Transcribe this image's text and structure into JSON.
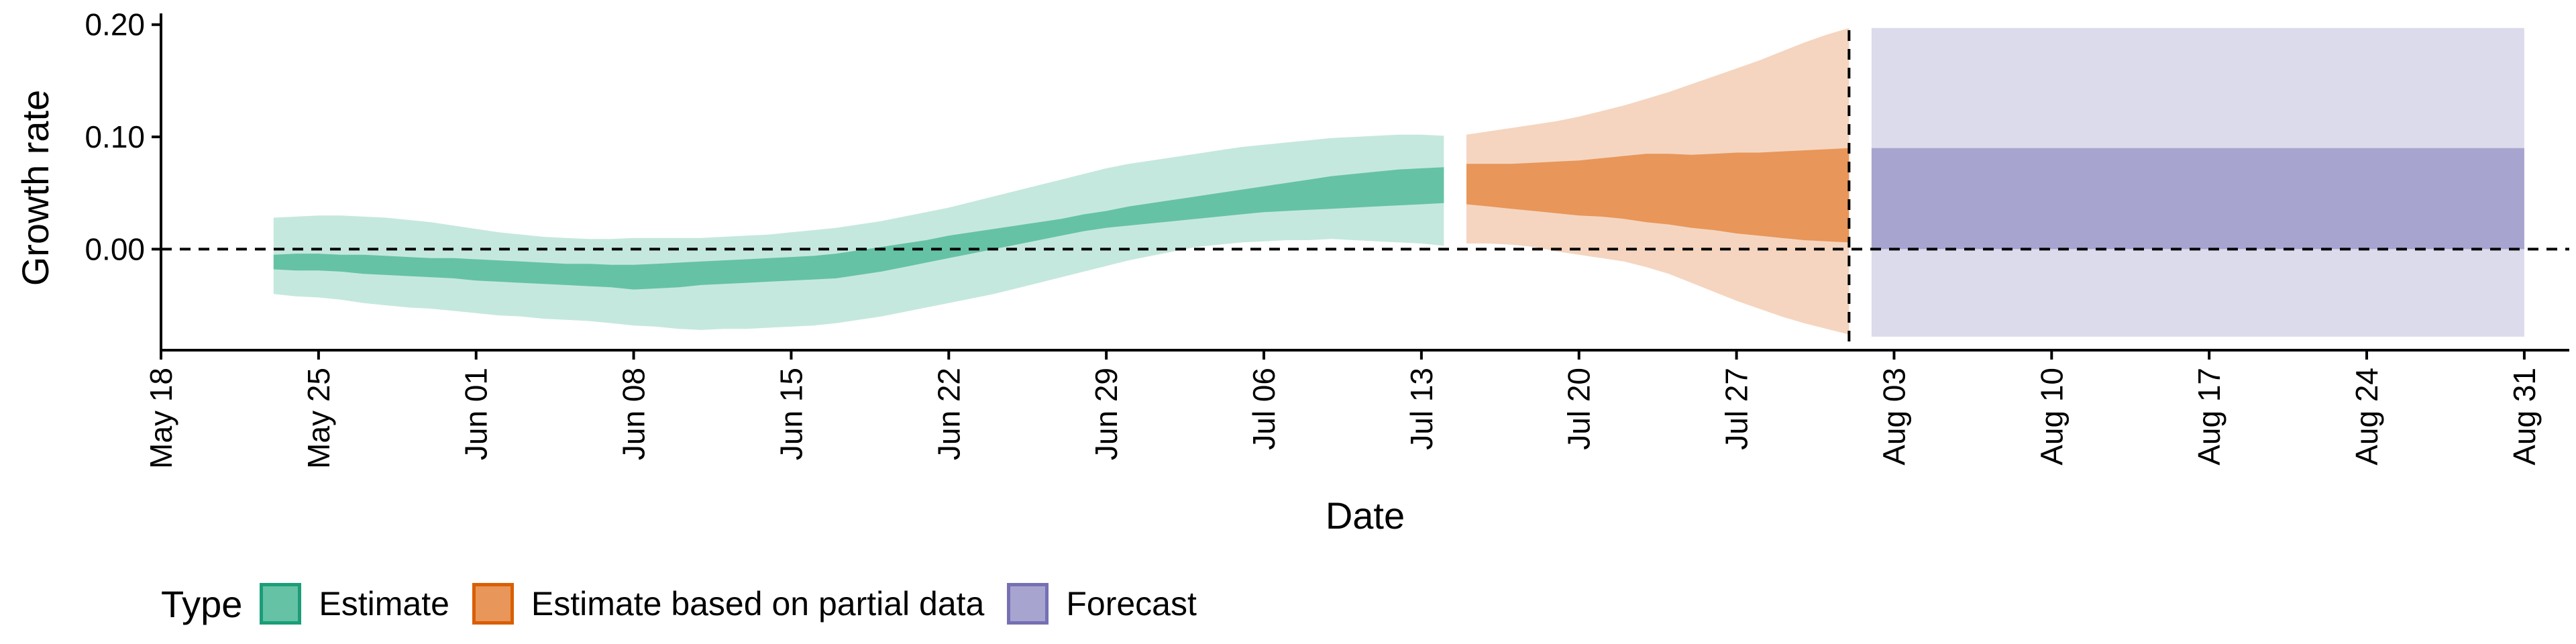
{
  "chart_data": {
    "type": "area",
    "xlabel": "Date",
    "ylabel": "Growth rate",
    "x_axis": {
      "type": "date",
      "range": [
        "2020-05-18",
        "2020-09-02"
      ],
      "ticks": [
        {
          "date": "2020-05-18",
          "label": "May 18"
        },
        {
          "date": "2020-05-25",
          "label": "May 25"
        },
        {
          "date": "2020-06-01",
          "label": "Jun 01"
        },
        {
          "date": "2020-06-08",
          "label": "Jun 08"
        },
        {
          "date": "2020-06-15",
          "label": "Jun 15"
        },
        {
          "date": "2020-06-22",
          "label": "Jun 22"
        },
        {
          "date": "2020-06-29",
          "label": "Jun 29"
        },
        {
          "date": "2020-07-06",
          "label": "Jul 06"
        },
        {
          "date": "2020-07-13",
          "label": "Jul 13"
        },
        {
          "date": "2020-07-20",
          "label": "Jul 20"
        },
        {
          "date": "2020-07-27",
          "label": "Jul 27"
        },
        {
          "date": "2020-08-03",
          "label": "Aug 03"
        },
        {
          "date": "2020-08-10",
          "label": "Aug 10"
        },
        {
          "date": "2020-08-17",
          "label": "Aug 17"
        },
        {
          "date": "2020-08-24",
          "label": "Aug 24"
        },
        {
          "date": "2020-08-31",
          "label": "Aug 31"
        }
      ],
      "tick_label_rotation": "vertical"
    },
    "y_axis": {
      "range": [
        -0.09,
        0.21
      ],
      "ticks": [
        {
          "value": 0.0,
          "label": "0.00"
        },
        {
          "value": 0.1,
          "label": "0.10"
        },
        {
          "value": 0.2,
          "label": "0.20"
        }
      ]
    },
    "reference_lines": [
      {
        "orientation": "horizontal",
        "value": 0,
        "style": "dashed"
      },
      {
        "orientation": "vertical",
        "date": "2020-08-01",
        "style": "dashed"
      }
    ],
    "grid": false,
    "legend": {
      "title": "Type",
      "position": "bottom-left",
      "entries": [
        {
          "label": "Estimate",
          "fill": "#66c2a5",
          "border": "#1b9e77"
        },
        {
          "label": "Estimate based on partial data",
          "fill": "#e8965a",
          "border": "#d95f02"
        },
        {
          "label": "Forecast",
          "fill": "#a8a4d0",
          "border": "#7570b3"
        }
      ]
    },
    "series": [
      {
        "name": "Estimate",
        "color_inner": "#66c2a5",
        "color_outer": "#c5e8de",
        "x": [
          "2020-05-23",
          "2020-05-24",
          "2020-05-25",
          "2020-05-26",
          "2020-05-27",
          "2020-05-28",
          "2020-05-29",
          "2020-05-30",
          "2020-05-31",
          "2020-06-01",
          "2020-06-02",
          "2020-06-03",
          "2020-06-04",
          "2020-06-05",
          "2020-06-06",
          "2020-06-07",
          "2020-06-08",
          "2020-06-09",
          "2020-06-10",
          "2020-06-11",
          "2020-06-12",
          "2020-06-13",
          "2020-06-14",
          "2020-06-15",
          "2020-06-16",
          "2020-06-17",
          "2020-06-18",
          "2020-06-19",
          "2020-06-20",
          "2020-06-21",
          "2020-06-22",
          "2020-06-23",
          "2020-06-24",
          "2020-06-25",
          "2020-06-26",
          "2020-06-27",
          "2020-06-28",
          "2020-06-29",
          "2020-06-30",
          "2020-07-01",
          "2020-07-02",
          "2020-07-03",
          "2020-07-04",
          "2020-07-05",
          "2020-07-06",
          "2020-07-07",
          "2020-07-08",
          "2020-07-09",
          "2020-07-10",
          "2020-07-11",
          "2020-07-12",
          "2020-07-13",
          "2020-07-14"
        ],
        "outer_lower": [
          -0.04,
          -0.042,
          -0.043,
          -0.045,
          -0.048,
          -0.05,
          -0.052,
          -0.053,
          -0.055,
          -0.057,
          -0.059,
          -0.06,
          -0.062,
          -0.063,
          -0.064,
          -0.066,
          -0.068,
          -0.069,
          -0.071,
          -0.072,
          -0.071,
          -0.071,
          -0.07,
          -0.069,
          -0.068,
          -0.066,
          -0.063,
          -0.06,
          -0.056,
          -0.052,
          -0.048,
          -0.044,
          -0.04,
          -0.035,
          -0.03,
          -0.025,
          -0.02,
          -0.015,
          -0.01,
          -0.006,
          -0.002,
          0.002,
          0.004,
          0.006,
          0.007,
          0.008,
          0.008,
          0.009,
          0.008,
          0.007,
          0.006,
          0.005,
          0.003
        ],
        "inner_lower": [
          -0.018,
          -0.019,
          -0.019,
          -0.02,
          -0.022,
          -0.023,
          -0.024,
          -0.025,
          -0.026,
          -0.028,
          -0.029,
          -0.03,
          -0.031,
          -0.032,
          -0.033,
          -0.034,
          -0.036,
          -0.035,
          -0.034,
          -0.032,
          -0.031,
          -0.03,
          -0.029,
          -0.028,
          -0.027,
          -0.026,
          -0.023,
          -0.02,
          -0.016,
          -0.012,
          -0.008,
          -0.004,
          0.0,
          0.004,
          0.008,
          0.012,
          0.016,
          0.019,
          0.021,
          0.023,
          0.025,
          0.027,
          0.029,
          0.031,
          0.033,
          0.034,
          0.035,
          0.036,
          0.037,
          0.038,
          0.039,
          0.04,
          0.041
        ],
        "inner_upper": [
          -0.005,
          -0.004,
          -0.004,
          -0.005,
          -0.005,
          -0.006,
          -0.007,
          -0.008,
          -0.008,
          -0.009,
          -0.01,
          -0.011,
          -0.012,
          -0.013,
          -0.013,
          -0.014,
          -0.014,
          -0.013,
          -0.012,
          -0.011,
          -0.01,
          -0.009,
          -0.008,
          -0.007,
          -0.006,
          -0.004,
          -0.001,
          0.002,
          0.005,
          0.008,
          0.012,
          0.015,
          0.018,
          0.021,
          0.024,
          0.027,
          0.031,
          0.034,
          0.038,
          0.041,
          0.044,
          0.047,
          0.05,
          0.053,
          0.056,
          0.059,
          0.062,
          0.065,
          0.067,
          0.069,
          0.071,
          0.072,
          0.073
        ],
        "outer_upper": [
          0.028,
          0.029,
          0.03,
          0.03,
          0.029,
          0.028,
          0.026,
          0.024,
          0.021,
          0.018,
          0.015,
          0.013,
          0.011,
          0.01,
          0.009,
          0.009,
          0.01,
          0.01,
          0.01,
          0.01,
          0.011,
          0.012,
          0.013,
          0.015,
          0.017,
          0.019,
          0.022,
          0.025,
          0.029,
          0.033,
          0.037,
          0.042,
          0.047,
          0.052,
          0.057,
          0.062,
          0.067,
          0.072,
          0.076,
          0.079,
          0.082,
          0.085,
          0.088,
          0.091,
          0.093,
          0.095,
          0.097,
          0.099,
          0.1,
          0.101,
          0.102,
          0.102,
          0.101
        ]
      },
      {
        "name": "Estimate based on partial data",
        "color_inner": "#e8965a",
        "color_outer": "#f5d5bf",
        "x": [
          "2020-07-15",
          "2020-07-16",
          "2020-07-17",
          "2020-07-18",
          "2020-07-19",
          "2020-07-20",
          "2020-07-21",
          "2020-07-22",
          "2020-07-23",
          "2020-07-24",
          "2020-07-25",
          "2020-07-26",
          "2020-07-27",
          "2020-07-28",
          "2020-07-29",
          "2020-07-30",
          "2020-07-31",
          "2020-08-01"
        ],
        "outer_lower": [
          0.005,
          0.005,
          0.004,
          0.002,
          -0.002,
          -0.005,
          -0.008,
          -0.011,
          -0.016,
          -0.022,
          -0.03,
          -0.038,
          -0.046,
          -0.053,
          -0.06,
          -0.066,
          -0.071,
          -0.076
        ],
        "inner_lower": [
          0.04,
          0.038,
          0.036,
          0.034,
          0.032,
          0.03,
          0.029,
          0.027,
          0.024,
          0.022,
          0.019,
          0.017,
          0.014,
          0.012,
          0.01,
          0.008,
          0.007,
          0.006
        ],
        "inner_upper": [
          0.076,
          0.076,
          0.076,
          0.077,
          0.078,
          0.079,
          0.081,
          0.083,
          0.085,
          0.085,
          0.084,
          0.085,
          0.086,
          0.086,
          0.087,
          0.088,
          0.089,
          0.09
        ],
        "outer_upper": [
          0.102,
          0.105,
          0.108,
          0.111,
          0.114,
          0.118,
          0.123,
          0.128,
          0.134,
          0.14,
          0.147,
          0.154,
          0.161,
          0.168,
          0.176,
          0.184,
          0.191,
          0.197
        ]
      },
      {
        "name": "Forecast",
        "color_inner": "#a8a4d0",
        "color_outer": "#dcdbec",
        "x": [
          "2020-08-02",
          "2020-08-31"
        ],
        "outer_lower": [
          -0.078,
          -0.078
        ],
        "inner_lower": [
          0.0,
          0.0
        ],
        "inner_upper": [
          0.09,
          0.09
        ],
        "outer_upper": [
          0.197,
          0.197
        ]
      }
    ]
  }
}
